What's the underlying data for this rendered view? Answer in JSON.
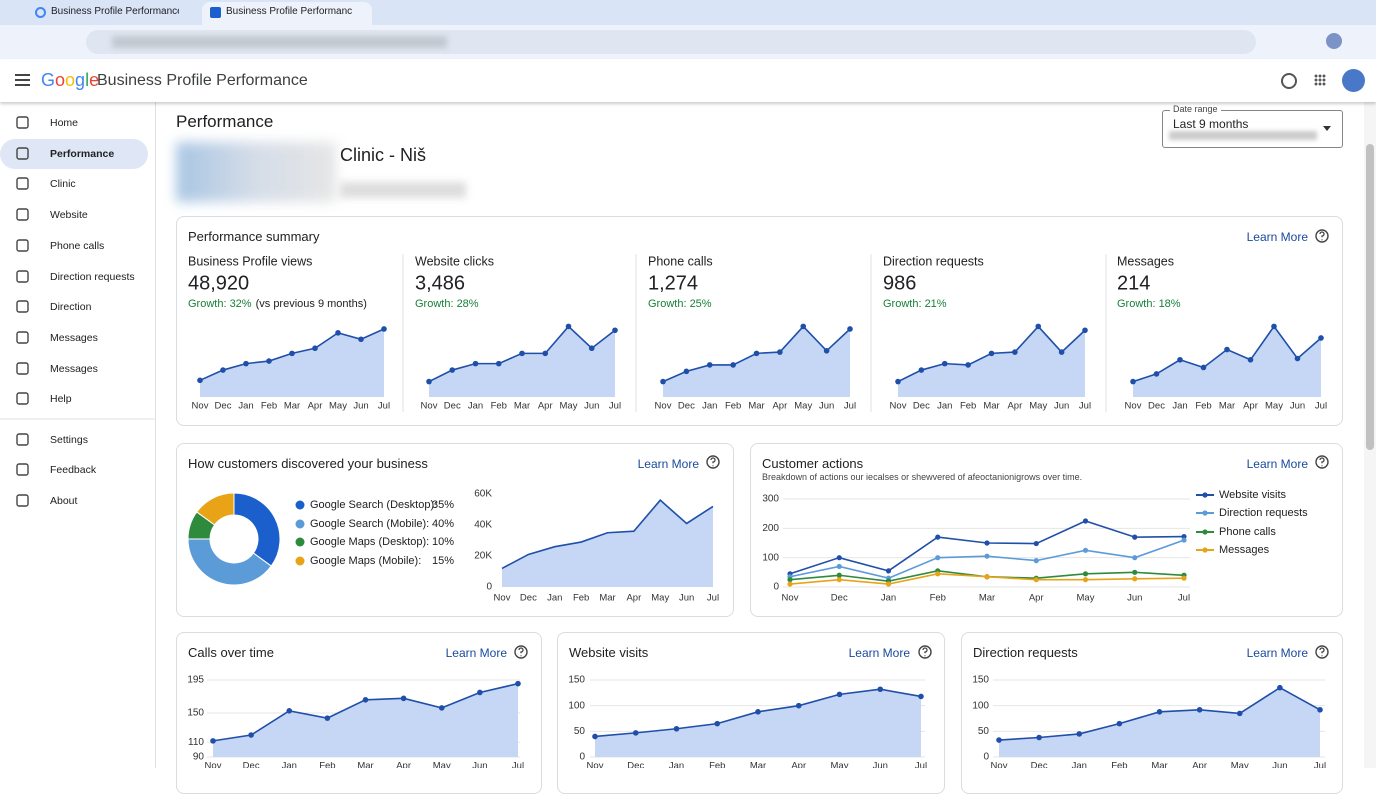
{
  "browser": {
    "tabs": [
      "Business Profile Performance -",
      "Business Profile Performance -"
    ]
  },
  "header": {
    "logo": "Google",
    "title": "Business Profile Performance"
  },
  "sidebar": {
    "items": [
      "Home",
      "Performance",
      "Clinic",
      "Website",
      "Phone calls",
      "Direction requests",
      "Direction",
      "Messages",
      "Messages",
      "Help",
      "Settings",
      "Feedback",
      "About"
    ]
  },
  "page": {
    "title": "Performance",
    "business_name": "Clinic - Niš",
    "date_range": {
      "label": "Date range",
      "value": "Last 9 months"
    }
  },
  "summary": {
    "title": "Performance summary",
    "learn_more": "Learn More"
  },
  "chart_data": [
    {
      "type": "area",
      "title": "Business Profile views",
      "total": "48,920",
      "growth": "Growth: 32%",
      "growth_note": "(vs previous 9 months)",
      "categories": [
        "Nov",
        "Dec",
        "Jan",
        "Feb",
        "Mar",
        "Apr",
        "May",
        "Jun",
        "Jul"
      ],
      "values": [
        13,
        21,
        26,
        28,
        34,
        38,
        50,
        45,
        53
      ],
      "ylim": [
        0,
        60
      ],
      "color": "#1f4fa8",
      "fill": "#c6d6f5",
      "points": true
    },
    {
      "type": "area",
      "title": "Website clicks",
      "total": "3,486",
      "growth": "Growth: 28%",
      "categories": [
        "Nov",
        "Dec",
        "Jan",
        "Feb",
        "Mar",
        "Apr",
        "May",
        "Jun",
        "Jul"
      ],
      "values": [
        12,
        21,
        26,
        26,
        34,
        34,
        55,
        38,
        52
      ],
      "ylim": [
        0,
        60
      ],
      "color": "#1f4fa8",
      "fill": "#c6d6f5",
      "points": true
    },
    {
      "type": "area",
      "title": "Phone calls",
      "total": "1,274",
      "growth": "Growth: 25%",
      "categories": [
        "Nov",
        "Dec",
        "Jan",
        "Feb",
        "Mar",
        "Apr",
        "May",
        "Jun",
        "Jul"
      ],
      "values": [
        12,
        20,
        25,
        25,
        34,
        35,
        55,
        36,
        53
      ],
      "ylim": [
        0,
        60
      ],
      "color": "#1f4fa8",
      "fill": "#c6d6f5",
      "points": true
    },
    {
      "type": "area",
      "title": "Direction requests",
      "total": "986",
      "growth": "Growth: 21%",
      "categories": [
        "Nov",
        "Dec",
        "Jan",
        "Feb",
        "Mar",
        "Apr",
        "May",
        "Jun",
        "Jul"
      ],
      "values": [
        12,
        21,
        26,
        25,
        34,
        35,
        55,
        35,
        52
      ],
      "ylim": [
        0,
        60
      ],
      "color": "#1f4fa8",
      "fill": "#c6d6f5",
      "points": true
    },
    {
      "type": "area",
      "title": "Messages",
      "total": "214",
      "growth": "Growth: 18%",
      "categories": [
        "Nov",
        "Dec",
        "Jan",
        "Feb",
        "Mar",
        "Apr",
        "May",
        "Jun",
        "Jul"
      ],
      "values": [
        12,
        18,
        29,
        23,
        37,
        29,
        55,
        30,
        46
      ],
      "ylim": [
        0,
        60
      ],
      "color": "#1f4fa8",
      "fill": "#c6d6f5",
      "points": true
    },
    {
      "type": "pie",
      "title": "How customers discovered your business",
      "learn_more": "Learn More",
      "donut": true,
      "categories": [
        "Google Search (Desktop):",
        "Google Search (Mobile):",
        "Google Maps (Desktop):",
        "Google Maps (Mobile):"
      ],
      "values": [
        35,
        40,
        10,
        15
      ],
      "value_labels": [
        "35%",
        "40%",
        "10%",
        "15%"
      ],
      "colors": [
        "#1a5fcc",
        "#5b9bd8",
        "#2e8b3e",
        "#e8a317"
      ]
    },
    {
      "type": "area",
      "categories": [
        "Nov",
        "Dec",
        "Jan",
        "Feb",
        "Mar",
        "Apr",
        "May",
        "Jun",
        "Jul"
      ],
      "values": [
        12000,
        21000,
        26000,
        29000,
        35000,
        36000,
        56000,
        41000,
        52000
      ],
      "ylim": [
        0,
        60000
      ],
      "yticks": [
        0,
        {
          "value": 20000,
          "label": "20K"
        },
        {
          "value": 40000,
          "label": "40K"
        },
        {
          "value": 60000,
          "label": "60K"
        }
      ],
      "color": "#1f4fa8",
      "fill": "#c6d6f5",
      "points": false
    },
    {
      "type": "line",
      "title": "Customer actions",
      "subtitle": "Breakdown of actions our iecalses or shewvered of afeoctanionigrows over time.",
      "learn_more": "Learn More",
      "categories": [
        "Nov",
        "Dec",
        "Jan",
        "Feb",
        "Mar",
        "Apr",
        "May",
        "Jun",
        "Jul"
      ],
      "ylim": [
        0,
        300
      ],
      "yticks": [
        0,
        100,
        200,
        300
      ],
      "grid": true,
      "series": [
        {
          "name": "Website visits",
          "color": "#1f4fa8",
          "values": [
            45,
            100,
            55,
            170,
            150,
            148,
            225,
            170,
            172
          ]
        },
        {
          "name": "Direction requests",
          "color": "#5b9bd8",
          "values": [
            35,
            70,
            30,
            100,
            105,
            90,
            125,
            100,
            160
          ]
        },
        {
          "name": "Phone calls",
          "color": "#2e8b3e",
          "values": [
            25,
            40,
            20,
            55,
            35,
            30,
            45,
            50,
            40
          ]
        },
        {
          "name": "Messages",
          "color": "#e8a317",
          "values": [
            10,
            25,
            10,
            45,
            35,
            25,
            25,
            28,
            30
          ]
        }
      ]
    },
    {
      "type": "area",
      "title": "Calls over time",
      "learn_more": "Learn More",
      "categories": [
        "Nov",
        "Dec",
        "Jan",
        "Feb",
        "Mar",
        "Apr",
        "May",
        "Jun",
        "Jul"
      ],
      "values": [
        112,
        120,
        153,
        143,
        168,
        170,
        157,
        178,
        190
      ],
      "ylim": [
        90,
        195
      ],
      "yticks": [
        90,
        110,
        150,
        195
      ],
      "grid": true,
      "color": "#1f4fa8",
      "fill": "#c6d6f5",
      "points": true
    },
    {
      "type": "area",
      "title": "Website visits",
      "learn_more": "Learn More",
      "categories": [
        "Nov",
        "Dec",
        "Jan",
        "Feb",
        "Mar",
        "Apr",
        "May",
        "Jun",
        "Jul"
      ],
      "values": [
        40,
        47,
        55,
        65,
        88,
        100,
        122,
        132,
        118
      ],
      "ylim": [
        0,
        150
      ],
      "yticks": [
        0,
        50,
        100,
        150
      ],
      "grid": true,
      "color": "#1f4fa8",
      "fill": "#c6d6f5",
      "points": true
    },
    {
      "type": "area",
      "title": "Direction requests",
      "learn_more": "Learn More",
      "categories": [
        "Nov",
        "Dec",
        "Jan",
        "Feb",
        "Mar",
        "Apr",
        "May",
        "Jun",
        "Jul"
      ],
      "values": [
        33,
        38,
        45,
        65,
        88,
        92,
        85,
        135,
        92
      ],
      "ylim": [
        0,
        150
      ],
      "yticks": [
        0,
        50,
        100,
        150
      ],
      "grid": true,
      "color": "#1f4fa8",
      "fill": "#c6d6f5",
      "points": true
    }
  ]
}
